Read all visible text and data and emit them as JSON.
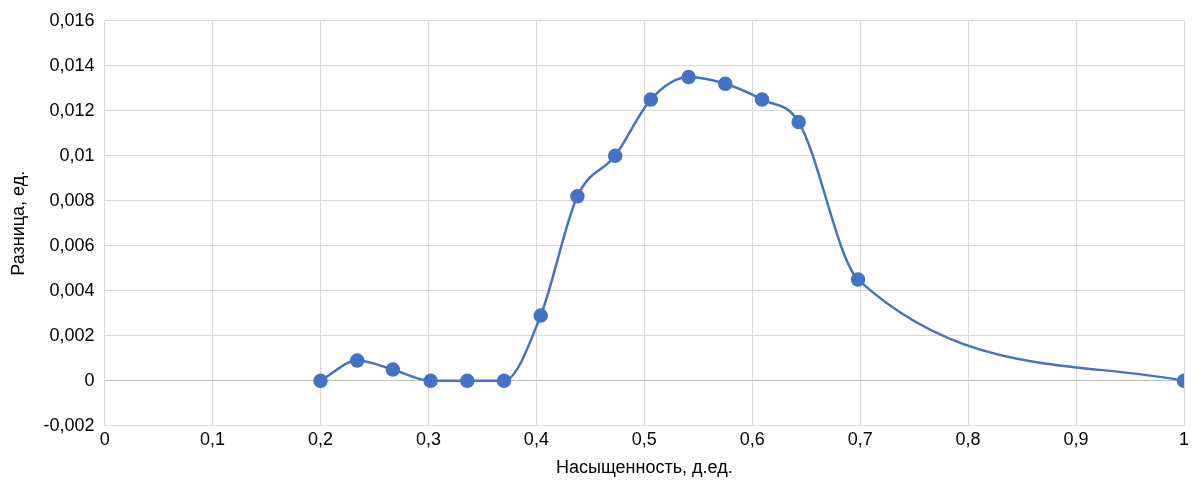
{
  "chart_data": {
    "type": "line",
    "xlabel": "Насыщенность, д.ед.",
    "ylabel": "Разница, ед.",
    "x": [
      0.2,
      0.234,
      0.267,
      0.302,
      0.336,
      0.37,
      0.404,
      0.438,
      0.473,
      0.506,
      0.541,
      0.575,
      0.609,
      0.643,
      0.698,
      1
    ],
    "series": [
      {
        "color": "#4472c4",
        "values": [
          0,
          0.0009,
          0.0005,
          0,
          0,
          0,
          0.0029,
          0.0082,
          0.01,
          0.0125,
          0.0135,
          0.0132,
          0.0125,
          0.0115,
          0.0045,
          0
        ]
      }
    ],
    "xlim": [
      0,
      1
    ],
    "xticks": [
      0,
      {
        "value": 0.1,
        "label": "0,1"
      },
      {
        "value": 0.2,
        "label": "0,2"
      },
      {
        "value": 0.3,
        "label": "0,3"
      },
      {
        "value": 0.4,
        "label": "0,4"
      },
      {
        "value": 0.5,
        "label": "0,5"
      },
      {
        "value": 0.6,
        "label": "0,6"
      },
      {
        "value": 0.7,
        "label": "0,7"
      },
      {
        "value": 0.8,
        "label": "0,8"
      },
      {
        "value": 0.9,
        "label": "0,9"
      },
      1
    ],
    "ylim": [
      -0.002,
      0.016
    ],
    "yticks": [
      {
        "value": -0.002,
        "label": "-0,002"
      },
      0,
      {
        "value": 0.002,
        "label": "0,002"
      },
      {
        "value": 0.004,
        "label": "0,004"
      },
      {
        "value": 0.006,
        "label": "0,006"
      },
      {
        "value": 0.008,
        "label": "0,008"
      },
      {
        "value": 0.01,
        "label": "0,01"
      },
      {
        "value": 0.012,
        "label": "0,012"
      },
      {
        "value": 0.014,
        "label": "0,014"
      },
      {
        "value": 0.016,
        "label": "0,016"
      }
    ],
    "grid": true,
    "marker": "circle",
    "line_style": "solid",
    "legend": false
  }
}
